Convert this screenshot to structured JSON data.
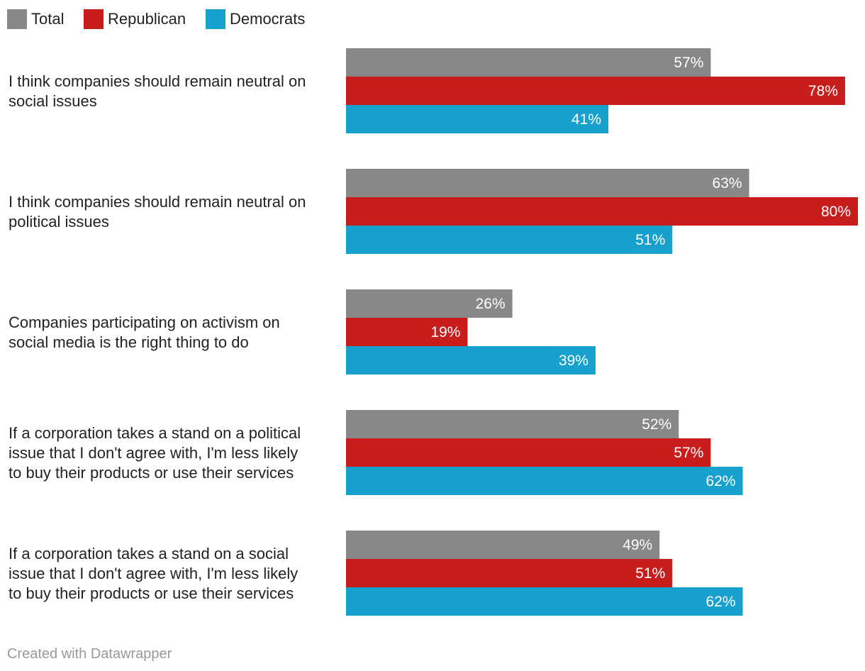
{
  "chart_data": {
    "type": "bar",
    "orientation": "horizontal",
    "categories": [
      "I think companies should remain neutral on social issues",
      "I think companies should remain neutral on political issues",
      "Companies participating on activism on social media is the right thing to do",
      "If a corporation takes a stand on a political issue that I don't agree with, I'm less likely to buy their products or use their services",
      "If a corporation takes a stand on a social issue that I don't agree with, I'm less likely to buy their products or use their services"
    ],
    "category_lines": [
      [
        "I think companies should remain neutral on",
        "social issues"
      ],
      [
        "I think companies should remain neutral on",
        "political issues"
      ],
      [
        "Companies participating on activism on",
        "social media is the right thing to do"
      ],
      [
        "If a corporation takes a stand on a political",
        "issue that I don't agree with, I'm less likely",
        "to buy their products or use their services"
      ],
      [
        "If a corporation takes a stand on a social",
        "issue that I don't agree with, I'm less likely",
        "to buy their products or use their services"
      ]
    ],
    "series": [
      {
        "name": "Total",
        "color": "#888888",
        "values": [
          57,
          63,
          26,
          52,
          49
        ]
      },
      {
        "name": "Republican",
        "color": "#c71e1d",
        "values": [
          78,
          80,
          19,
          57,
          51
        ]
      },
      {
        "name": "Democrats",
        "color": "#18a1cd",
        "values": [
          41,
          51,
          39,
          62,
          62
        ]
      }
    ],
    "value_suffix": "%",
    "xlim": [
      0,
      80
    ],
    "legend_position": "top-left",
    "grid": false
  },
  "footer": {
    "credit": "Created with Datawrapper"
  }
}
